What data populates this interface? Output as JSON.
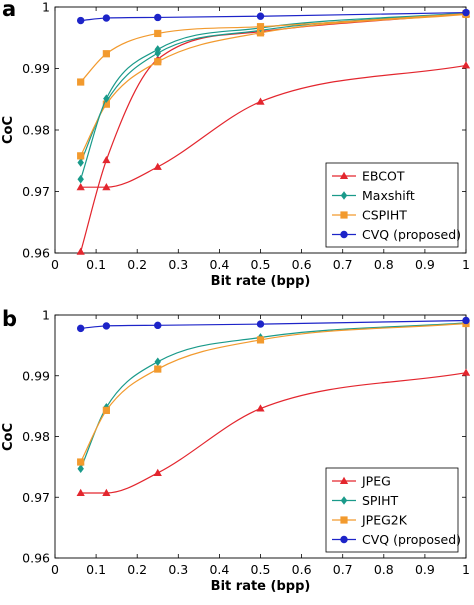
{
  "chart_data": [
    {
      "type": "line",
      "panel_label": "a",
      "xlabel": "Bit rate (bpp)",
      "ylabel": "CoC",
      "xlim": [
        0,
        1
      ],
      "ylim": [
        0.96,
        1.0
      ],
      "xticks": [
        0,
        0.1,
        0.2,
        0.3,
        0.4,
        0.5,
        0.6,
        0.7,
        0.8,
        0.9,
        1
      ],
      "yticks": [
        0.96,
        0.97,
        0.98,
        0.99,
        1
      ],
      "xtick_labels": [
        "0",
        "0.1",
        "0.2",
        "0.3",
        "0.4",
        "0.5",
        "0.6",
        "0.7",
        "0.8",
        "0.9",
        "1"
      ],
      "ytick_labels": [
        "0.96",
        "0.97",
        "0.98",
        "0.99",
        "1"
      ],
      "grid": false,
      "legend_position": "bottom-right",
      "series": [
        {
          "name": "EBCOT",
          "color": "#e3262e",
          "marker": "triangle",
          "x": [
            0.0625,
            0.125,
            0.25,
            0.5,
            1.0
          ],
          "y": [
            0.9707,
            0.9707,
            0.974,
            0.9846,
            0.9905
          ]
        },
        {
          "name": "Maxshift",
          "color": "#1a9a8a",
          "marker": "diamond",
          "x": [
            0.0625,
            0.125,
            0.25,
            0.5,
            1.0
          ],
          "y": [
            0.972,
            0.9851,
            0.9931,
            0.9966,
            0.999
          ]
        },
        {
          "name": "CSPIHT",
          "color": "#f29a2e",
          "marker": "square",
          "x": [
            0.0625,
            0.125,
            0.25,
            0.5,
            1.0
          ],
          "y": [
            0.9878,
            0.9924,
            0.9957,
            0.9968,
            0.9989
          ]
        },
        {
          "name": "CVQ (proposed)",
          "color": "#1d24c8",
          "marker": "circle",
          "x": [
            0.0625,
            0.125,
            0.25,
            0.5,
            1.0
          ],
          "y": [
            0.9978,
            0.9982,
            0.9983,
            0.9985,
            0.9991
          ]
        }
      ],
      "extra_series": [
        {
          "name": "",
          "color": "#e3262e",
          "marker": "triangle",
          "x": [
            0.0625,
            0.125,
            0.25,
            0.5,
            1.0
          ],
          "y": [
            0.9602,
            0.9751,
            0.9915,
            0.996,
            0.9989
          ]
        },
        {
          "name": "",
          "color": "#1a9a8a",
          "marker": "diamond",
          "x": [
            0.0625,
            0.125,
            0.25,
            0.5,
            1.0
          ],
          "y": [
            0.9747,
            0.9846,
            0.9925,
            0.9962,
            0.999
          ]
        },
        {
          "name": "",
          "color": "#f29a2e",
          "marker": "square",
          "x": [
            0.0625,
            0.125,
            0.25,
            0.5,
            1.0
          ],
          "y": [
            0.9758,
            0.9842,
            0.9911,
            0.9958,
            0.9988
          ]
        }
      ]
    },
    {
      "type": "line",
      "panel_label": "b",
      "xlabel": "Bit rate (bpp)",
      "ylabel": "CoC",
      "xlim": [
        0,
        1
      ],
      "ylim": [
        0.96,
        1.0
      ],
      "xticks": [
        0,
        0.1,
        0.2,
        0.3,
        0.4,
        0.5,
        0.6,
        0.7,
        0.8,
        0.9,
        1
      ],
      "yticks": [
        0.96,
        0.97,
        0.98,
        0.99,
        1
      ],
      "xtick_labels": [
        "0",
        "0.1",
        "0.2",
        "0.3",
        "0.4",
        "0.5",
        "0.6",
        "0.7",
        "0.8",
        "0.9",
        "1"
      ],
      "ytick_labels": [
        "0.96",
        "0.97",
        "0.98",
        "0.99",
        "1"
      ],
      "grid": false,
      "legend_position": "bottom-right",
      "series": [
        {
          "name": "JPEG",
          "color": "#e3262e",
          "marker": "triangle",
          "x": [
            0.0625,
            0.125,
            0.25,
            0.5,
            1.0
          ],
          "y": [
            0.9707,
            0.9707,
            0.974,
            0.9846,
            0.9905
          ]
        },
        {
          "name": "SPIHT",
          "color": "#1a9a8a",
          "marker": "diamond",
          "x": [
            0.0625,
            0.125,
            0.25,
            0.5,
            1.0
          ],
          "y": [
            0.9747,
            0.9848,
            0.9923,
            0.9963,
            0.9987
          ]
        },
        {
          "name": "JPEG2K",
          "color": "#f29a2e",
          "marker": "square",
          "x": [
            0.0625,
            0.125,
            0.25,
            0.5,
            1.0
          ],
          "y": [
            0.9758,
            0.9843,
            0.9911,
            0.9959,
            0.9986
          ]
        },
        {
          "name": "CVQ (proposed)",
          "color": "#1d24c8",
          "marker": "circle",
          "x": [
            0.0625,
            0.125,
            0.25,
            0.5,
            1.0
          ],
          "y": [
            0.9978,
            0.9982,
            0.9983,
            0.9985,
            0.9991
          ]
        }
      ],
      "extra_series": []
    }
  ]
}
